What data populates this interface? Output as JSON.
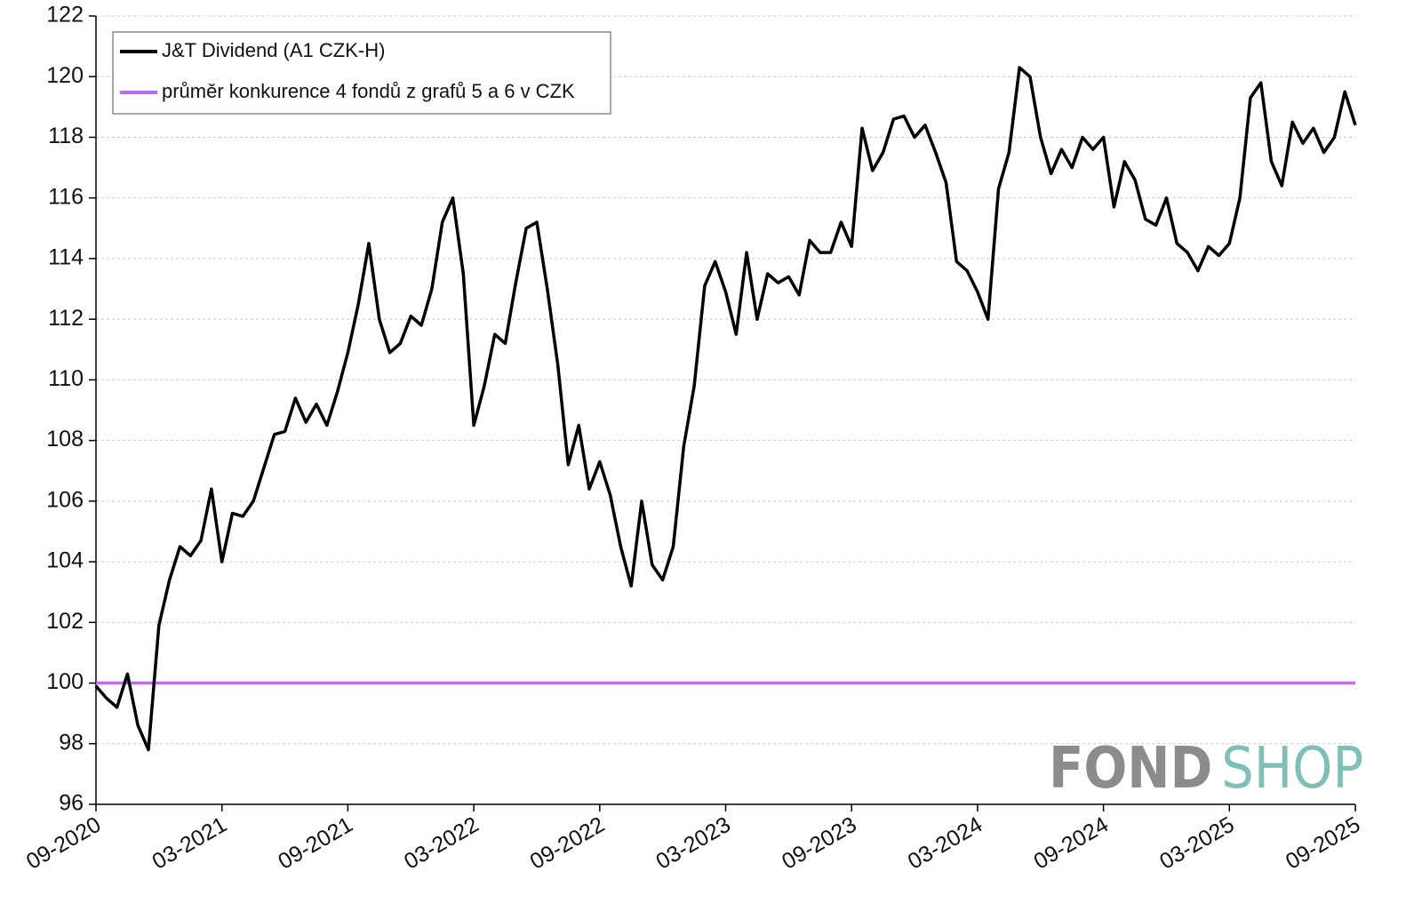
{
  "chart_data": {
    "type": "line",
    "categories": [
      "09-2020",
      null,
      null,
      null,
      null,
      null,
      null,
      null,
      null,
      null,
      null,
      null,
      "03-2021",
      null,
      null,
      null,
      null,
      null,
      null,
      null,
      null,
      null,
      null,
      null,
      "09-2021",
      null,
      null,
      null,
      null,
      null,
      null,
      null,
      null,
      null,
      null,
      null,
      "03-2022",
      null,
      null,
      null,
      null,
      null,
      null,
      null,
      null,
      null,
      null,
      null,
      "09-2022",
      null,
      null,
      null,
      null,
      null,
      null,
      null,
      null,
      null,
      null,
      null,
      "03-2023",
      null,
      null,
      null,
      null,
      null,
      null,
      null,
      null,
      null,
      null,
      null,
      "09-2023",
      null,
      null,
      null,
      null,
      null,
      null,
      null,
      null,
      null,
      null,
      null,
      "03-2024",
      null,
      null,
      null,
      null,
      null,
      null,
      null,
      null,
      null,
      null,
      null,
      "09-2024",
      null,
      null,
      null,
      null,
      null,
      null,
      null,
      null,
      null,
      null,
      null,
      "03-2025",
      null,
      null,
      null,
      null,
      null,
      null,
      null,
      null,
      null,
      null,
      null,
      "09-2025"
    ],
    "series": [
      {
        "name": "J&T Dividend (A1 CZK-H)",
        "color": "#000000",
        "values": [
          99.9,
          99.5,
          99.2,
          100.3,
          98.6,
          97.8,
          101.9,
          103.4,
          104.5,
          104.2,
          104.7,
          106.4,
          104.0,
          105.6,
          105.5,
          106.0,
          107.1,
          108.2,
          108.3,
          109.4,
          108.6,
          109.2,
          108.5,
          109.6,
          110.9,
          112.5,
          114.5,
          112.0,
          110.9,
          111.2,
          112.1,
          111.8,
          113.0,
          115.2,
          116.0,
          113.5,
          108.5,
          109.8,
          111.5,
          111.2,
          113.2,
          115.0,
          115.2,
          113.0,
          110.5,
          107.2,
          108.5,
          106.4,
          107.3,
          106.2,
          104.5,
          103.2,
          106.0,
          103.9,
          103.4,
          104.5,
          107.8,
          109.8,
          113.1,
          113.9,
          112.9,
          111.5,
          114.2,
          112.0,
          113.5,
          113.2,
          113.4,
          112.8,
          114.6,
          114.2,
          114.2,
          115.2,
          114.4,
          118.3,
          116.9,
          117.5,
          118.6,
          118.7,
          118.0,
          118.4,
          117.5,
          116.5,
          113.9,
          113.6,
          112.9,
          112.0,
          116.3,
          117.5,
          120.3,
          120.0,
          118.0,
          116.8,
          117.6,
          117.0,
          118.0,
          117.6,
          118.0,
          115.7,
          117.2,
          116.6,
          115.3,
          115.1,
          116.0,
          114.5,
          114.2,
          113.6,
          114.4,
          114.1,
          114.5,
          116.0,
          119.3,
          119.8,
          117.2,
          116.4,
          118.5,
          117.8,
          118.3,
          117.5,
          118.0,
          119.5,
          118.4
        ]
      },
      {
        "name": "průměr konkurence 4 fondů z grafů 5 a 6 v CZK",
        "color": "#c06af0",
        "values": [
          100,
          100,
          100,
          100,
          100,
          100,
          100,
          100,
          100,
          100,
          100,
          100,
          100,
          100,
          100,
          100,
          100,
          100,
          100,
          100,
          100,
          100,
          100,
          100,
          100,
          100,
          100,
          100,
          100,
          100,
          100,
          100,
          100,
          100,
          100,
          100,
          100,
          100,
          100,
          100,
          100,
          100,
          100,
          100,
          100,
          100,
          100,
          100,
          100,
          100,
          100,
          100,
          100,
          100,
          100,
          100,
          100,
          100,
          100,
          100,
          100,
          100,
          100,
          100,
          100,
          100,
          100,
          100,
          100,
          100,
          100,
          100,
          100,
          100,
          100,
          100,
          100,
          100,
          100,
          100,
          100,
          100,
          100,
          100,
          100,
          100,
          100,
          100,
          100,
          100,
          100,
          100,
          100,
          100,
          100,
          100,
          100,
          100,
          100,
          100,
          100,
          100,
          100,
          100,
          100,
          100,
          100,
          100,
          100,
          100,
          100,
          100,
          100,
          100,
          100,
          100,
          100,
          100,
          100,
          100,
          100
        ]
      }
    ],
    "ylim": [
      96,
      122
    ],
    "yticks": [
      96,
      98,
      100,
      102,
      104,
      106,
      108,
      110,
      112,
      114,
      116,
      118,
      120,
      122
    ],
    "grid": true,
    "legend": "upper-left",
    "watermark": {
      "left": "FOND",
      "right": "SHOP"
    }
  }
}
